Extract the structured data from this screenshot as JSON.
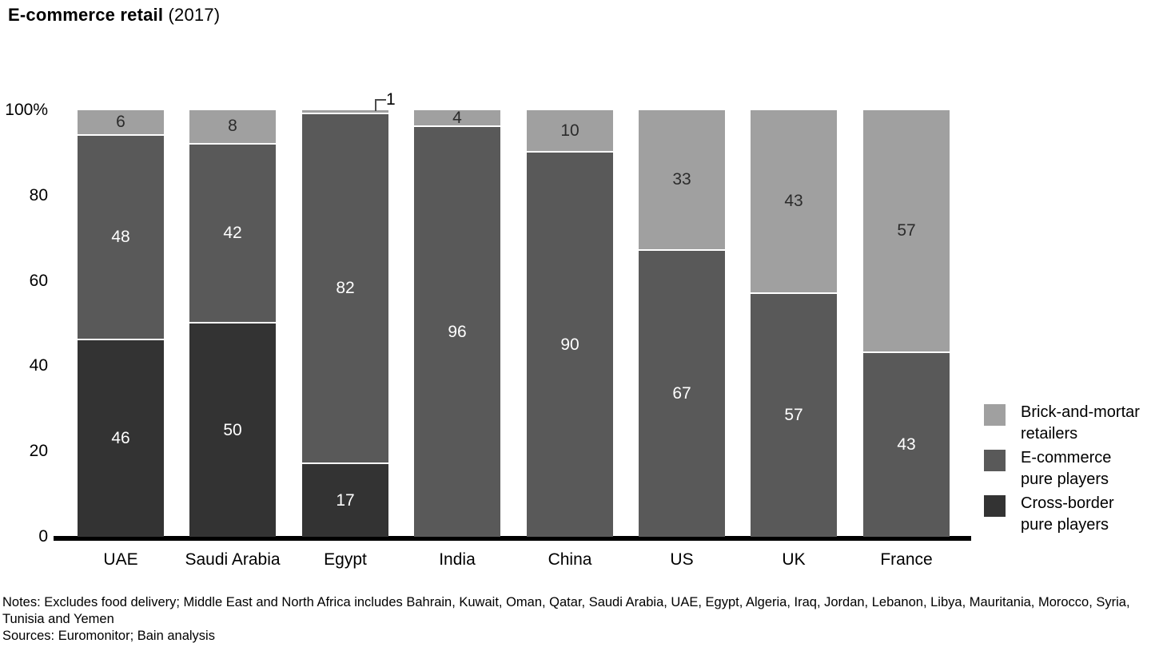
{
  "title": {
    "main": "E-commerce retail",
    "suffix": " (2017)"
  },
  "chart_data": {
    "type": "bar",
    "stacked": true,
    "unit": "%",
    "title": "E-commerce retail (2017)",
    "categories": [
      "UAE",
      "Saudi Arabia",
      "Egypt",
      "India",
      "China",
      "US",
      "UK",
      "France"
    ],
    "series": [
      {
        "name": "Cross-border pure players",
        "color": "#333333",
        "label_color": "#ffffff",
        "values": [
          46,
          50,
          17,
          0,
          0,
          0,
          0,
          0
        ]
      },
      {
        "name": "E-commerce pure players",
        "color": "#595959",
        "label_color": "#ffffff",
        "values": [
          48,
          42,
          82,
          96,
          90,
          67,
          57,
          43
        ]
      },
      {
        "name": "Brick-and-mortar retailers",
        "color": "#a0a0a0",
        "label_color": "#2b2b2b",
        "values": [
          6,
          8,
          1,
          4,
          10,
          33,
          43,
          57
        ]
      }
    ],
    "yticks": [
      {
        "value": 0,
        "label": "0"
      },
      {
        "value": 20,
        "label": "20"
      },
      {
        "value": 40,
        "label": "40"
      },
      {
        "value": 60,
        "label": "60"
      },
      {
        "value": 80,
        "label": "80"
      },
      {
        "value": 100,
        "label": "100%"
      }
    ],
    "ylim": [
      0,
      100
    ],
    "grid": false,
    "legend_position": "right",
    "min_inline_label": 3,
    "annotations": [
      {
        "category": "Egypt",
        "series": "Brick-and-mortar retailers",
        "text": "1"
      }
    ]
  },
  "legend": {
    "items": [
      {
        "label": "Brick-and-mortar\nretailers",
        "color": "#a0a0a0"
      },
      {
        "label": "E-commerce\npure players",
        "color": "#595959"
      },
      {
        "label": "Cross-border\npure players",
        "color": "#333333"
      }
    ]
  },
  "footer": {
    "notes": "Notes: Excludes food delivery; Middle East and North Africa includes Bahrain, Kuwait, Oman, Qatar, Saudi Arabia, UAE, Egypt, Algeria, Iraq, Jordan, Lebanon, Libya, Mauritania, Morocco, Syria, Tunisia and Yemen",
    "sources": "Sources: Euromonitor; Bain analysis"
  }
}
